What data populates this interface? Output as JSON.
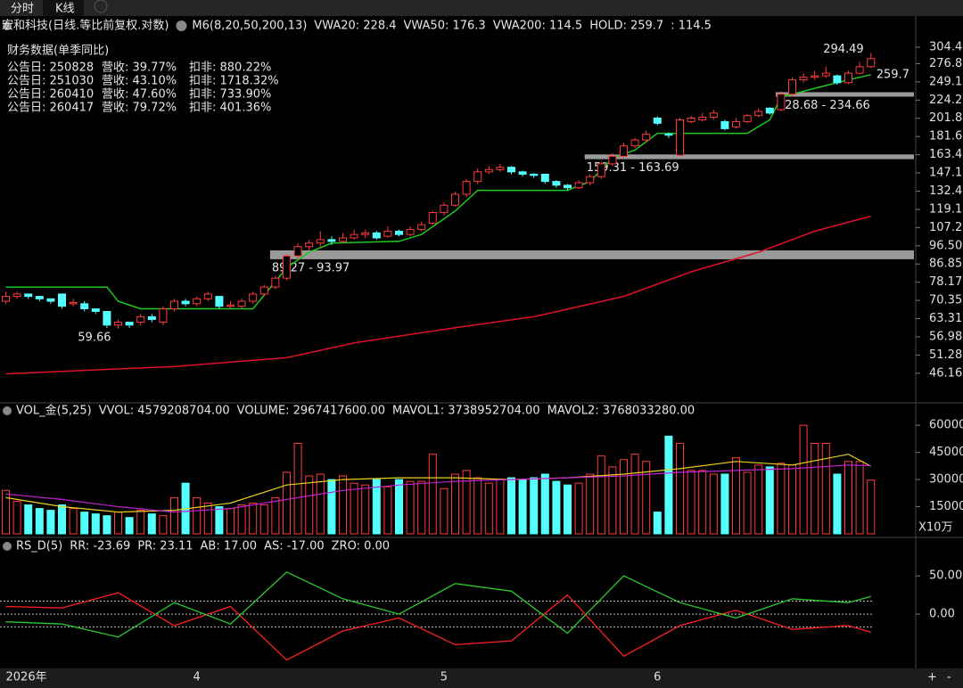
{
  "tabs": [
    "分时",
    "K线"
  ],
  "controls": [
    "+",
    "-"
  ],
  "chart_data": [
    {
      "type": "candlestick",
      "title": "宏和科技(日线.等比前复权.对数)",
      "indicators": [
        {
          "label": "M6(8,20,50,200,13)",
          "color": "#e6e6e6"
        },
        {
          "label": "VWA20: 228.4",
          "color": "#ffffff"
        },
        {
          "label": "VWA50: 176.3",
          "color": "#e8d21c"
        },
        {
          "label": "VWA200: 114.5",
          "color": "#e040e0"
        },
        {
          "label": "HOLD: 259.7",
          "color": "#2ee82e"
        },
        {
          "label": ": 114.5",
          "color": "#ff3030"
        }
      ],
      "finance": {
        "title": "财务数据(单季同比)",
        "rows": [
          [
            "公告日: 250828",
            "营收: 39.77%",
            "扣非: 880.22%"
          ],
          [
            "公告日: 251030",
            "营收: 43.10%",
            "扣非: 1718.32%"
          ],
          [
            "公告日: 260410",
            "营收: 47.60%",
            "扣非: 733.90%"
          ],
          [
            "公告日: 260417",
            "营收: 79.72%",
            "扣非: 401.36%"
          ]
        ]
      },
      "categories": [
        "2026年",
        null,
        null,
        null,
        null,
        null,
        null,
        null,
        null,
        null,
        null,
        null,
        null,
        null,
        null,
        null,
        null,
        "4",
        null,
        null,
        null,
        null,
        null,
        null,
        null,
        null,
        null,
        null,
        null,
        null,
        null,
        null,
        null,
        null,
        null,
        null,
        null,
        null,
        null,
        "5",
        null,
        null,
        null,
        null,
        null,
        null,
        null,
        null,
        null,
        null,
        null,
        null,
        null,
        null,
        null,
        null,
        null,
        null,
        "6",
        null,
        null,
        null,
        null,
        null,
        null,
        null,
        null,
        null,
        null,
        null,
        null,
        null,
        null,
        null,
        null,
        null,
        null,
        null
      ],
      "open": [
        70,
        72,
        73,
        72,
        71,
        73,
        69,
        69,
        67,
        66,
        61,
        62,
        62,
        64,
        62,
        67,
        70,
        69,
        71,
        72,
        68,
        68,
        70,
        73,
        76,
        80,
        91,
        96,
        98,
        100,
        99,
        101,
        103,
        104,
        102,
        105,
        103,
        106,
        110,
        117,
        122,
        130,
        140,
        148,
        150,
        152,
        148,
        146,
        146,
        140,
        137,
        135,
        139,
        144,
        155,
        162,
        172,
        178,
        202,
        184,
        163,
        198,
        200,
        203,
        198,
        192,
        198,
        205,
        214,
        212,
        232,
        252,
        256,
        258,
        258,
        248,
        262,
        272
      ],
      "high": [
        74,
        74,
        73,
        72,
        71,
        73,
        71,
        70,
        67,
        66,
        63,
        62,
        65,
        65,
        68,
        71,
        71,
        72,
        74,
        72,
        70,
        71,
        74,
        77,
        81,
        92,
        98,
        100,
        105,
        102,
        104,
        106,
        106,
        105,
        108,
        106,
        108,
        111,
        118,
        124,
        132,
        142,
        151,
        153,
        155,
        153,
        149,
        147,
        146,
        141,
        138,
        141,
        146,
        157,
        165,
        175,
        180,
        188,
        204,
        186,
        202,
        205,
        208,
        212,
        200,
        202,
        207,
        214,
        215,
        236,
        256,
        262,
        266,
        272,
        260,
        266,
        280,
        294.49
      ],
      "low": [
        69,
        71,
        71,
        70,
        69,
        67,
        68,
        66,
        65,
        60,
        59.66,
        60,
        61,
        62,
        61,
        66,
        68,
        68,
        70,
        67,
        67,
        67,
        69,
        72,
        75,
        79,
        89,
        94,
        96,
        97,
        98,
        100,
        101,
        100,
        101,
        102,
        102,
        105,
        109,
        115,
        121,
        128,
        138,
        146,
        148,
        146,
        144,
        143,
        138,
        135,
        133,
        134,
        137,
        142,
        153,
        160,
        170,
        175,
        194,
        180,
        162,
        196,
        198,
        200,
        188,
        190,
        196,
        203,
        206,
        210,
        230,
        248,
        252,
        255,
        245,
        246,
        260,
        270
      ],
      "close": [
        72,
        73,
        72,
        71,
        70,
        68,
        69.5,
        67,
        66,
        61,
        62,
        61,
        64,
        63,
        67,
        70,
        69,
        71,
        73,
        68,
        68.5,
        70,
        73,
        76,
        80,
        91,
        96,
        98,
        100,
        99,
        101,
        103,
        104,
        101,
        105,
        103,
        106,
        109,
        117,
        122,
        130,
        140,
        148,
        150,
        152,
        148,
        146,
        145,
        140,
        137,
        135,
        139,
        144,
        155,
        162,
        172,
        178,
        184,
        196,
        183,
        200,
        202,
        203,
        208,
        190,
        198,
        205,
        210,
        208,
        232,
        252,
        256,
        258,
        262,
        248,
        262,
        272,
        285
      ],
      "up_color": "#ff3b3b",
      "down_color": "#54ffff",
      "lines": [
        {
          "color": "#1ec81e",
          "x": [
            0,
            9,
            10,
            12,
            22,
            25,
            27,
            29,
            35,
            37,
            40,
            42,
            50,
            52,
            54,
            56,
            58,
            66,
            68,
            69,
            72,
            75,
            77
          ],
          "values": [
            76,
            76,
            70,
            67,
            67,
            85,
            93,
            98,
            99,
            103,
            118,
            133,
            133,
            140,
            160,
            168,
            185,
            185,
            200,
            228,
            240,
            252,
            259.7
          ]
        },
        {
          "color": "#e0102a",
          "x": [
            0,
            15,
            25,
            31,
            39,
            47,
            55,
            61,
            67,
            72,
            77
          ],
          "values": [
            46,
            48,
            50.5,
            55,
            59.5,
            64,
            72,
            83,
            93,
            105,
            114.5
          ]
        }
      ],
      "zones": [
        {
          "start": 24,
          "low": 89.27,
          "high": 93.97,
          "label": "89.27 - 93.97"
        },
        {
          "start": 52,
          "low": 159.31,
          "high": 163.69,
          "label": "159.31 - 163.69"
        },
        {
          "start": 69,
          "low": 228.68,
          "high": 234.66,
          "label": "228.68 - 234.66"
        }
      ],
      "annotations": [
        {
          "x": 77,
          "value": 294.49,
          "label": "294.49",
          "color": "#ffffff"
        },
        {
          "x": 77,
          "value": 259.7,
          "label": "259.7",
          "color": "#e8e81c"
        },
        {
          "x": 10,
          "value": 59.66,
          "label": "59.66",
          "color": "#ffffff"
        }
      ],
      "log_scale": true,
      "ylim": [
        39.3,
        325.5
      ],
      "yticks": [
        304.4,
        276.8,
        249.1,
        224.2,
        201.8,
        181.6,
        163.4,
        147.1,
        132.4,
        119.1,
        107.2,
        {
          "value": 96.5,
          "label": "96.50"
        },
        86.85,
        78.17,
        70.35,
        63.31,
        56.98,
        51.28,
        46.16
      ]
    },
    {
      "type": "bar",
      "title": "VOL_金(5,25)",
      "indicators": [
        {
          "label": "VVOL: 4579208704.00",
          "color": "#e6e6e6"
        },
        {
          "label": "VOLUME: 2967417600.00",
          "color": "#e8d21c"
        },
        {
          "label": "MAVOL1: 3738952704.00",
          "color": "#e8d21c"
        },
        {
          "label": "MAVOL2: 3768033280.00",
          "color": "#e040e0"
        }
      ],
      "values": [
        24000,
        18000,
        16000,
        14000,
        13000,
        16000,
        14000,
        12000,
        11000,
        10000,
        12000,
        9000,
        13000,
        11000,
        10000,
        20000,
        28000,
        20000,
        17000,
        15000,
        14000,
        16000,
        17000,
        16000,
        20000,
        34000,
        50000,
        32000,
        33000,
        30000,
        32000,
        28000,
        27000,
        30000,
        26000,
        30000,
        29000,
        29000,
        44000,
        25000,
        33000,
        35000,
        31000,
        28000,
        30000,
        31000,
        30000,
        31000,
        33000,
        29000,
        27000,
        28000,
        33000,
        43000,
        37000,
        41000,
        44000,
        40000,
        12000,
        54000,
        50000,
        35000,
        35000,
        33000,
        33000,
        42000,
        34000,
        38000,
        37000,
        39000,
        38000,
        60000,
        50000,
        50000,
        33000,
        40000,
        40000,
        29674
      ],
      "lines": [
        {
          "color": "#e8d21c",
          "x": [
            0,
            5,
            10,
            15,
            20,
            25,
            30,
            35,
            40,
            45,
            50,
            55,
            60,
            65,
            70,
            75,
            77
          ],
          "values": [
            20000,
            15000,
            12000,
            13000,
            17000,
            27000,
            30000,
            31000,
            31000,
            30000,
            31000,
            33000,
            36000,
            40000,
            38000,
            44000,
            37390
          ]
        },
        {
          "color": "#c020d0",
          "x": [
            0,
            5,
            10,
            15,
            20,
            25,
            30,
            35,
            40,
            45,
            50,
            55,
            60,
            65,
            70,
            75,
            77
          ],
          "values": [
            22000,
            19000,
            15000,
            12000,
            14000,
            19000,
            24000,
            27000,
            29000,
            30000,
            31000,
            32000,
            34000,
            35000,
            36000,
            38000,
            37680
          ]
        }
      ],
      "unit_label": "X10万",
      "ylim": [
        0,
        66000
      ],
      "yticks": [
        15000,
        30000,
        45000,
        60000
      ]
    },
    {
      "type": "line",
      "title": "RS_D(5)",
      "indicators": [
        {
          "label": "RR: -23.69",
          "color": "#ff3030"
        },
        {
          "label": "PR: 23.11",
          "color": "#2ee82e"
        },
        {
          "label": "AB: 17.00",
          "color": "#b0b0b0"
        },
        {
          "label": "AS: -17.00",
          "color": "#b0b0b0"
        },
        {
          "label": "ZRO: 0.00",
          "color": "#b0b0b0"
        }
      ],
      "series": [
        {
          "color": "#ff2020",
          "x": [
            0,
            5,
            10,
            15,
            20,
            25,
            30,
            35,
            40,
            45,
            50,
            55,
            60,
            65,
            70,
            75,
            77
          ],
          "values": [
            10,
            8,
            28,
            -15,
            10,
            -60,
            -22,
            -5,
            -40,
            -35,
            25,
            -55,
            -15,
            5,
            -20,
            -15,
            -23.69
          ]
        },
        {
          "color": "#2ec82e",
          "x": [
            0,
            5,
            10,
            15,
            20,
            25,
            30,
            35,
            40,
            45,
            50,
            55,
            60,
            65,
            70,
            75,
            77
          ],
          "values": [
            -10,
            -13,
            -30,
            15,
            -13,
            55,
            20,
            0,
            40,
            30,
            -25,
            50,
            15,
            -5,
            20,
            15,
            23.11
          ]
        }
      ],
      "reference_lines": [
        17,
        0,
        -17
      ],
      "ylim": [
        -71,
        98
      ],
      "yticks": [
        {
          "value": 50,
          "label": "50.00"
        },
        {
          "value": 0,
          "label": "0.00"
        }
      ]
    }
  ]
}
